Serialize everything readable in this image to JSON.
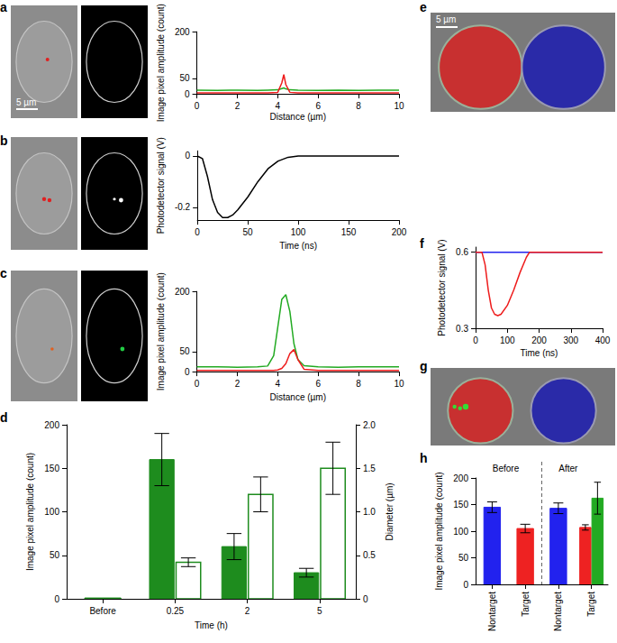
{
  "images": [
    {
      "panel": "a",
      "scale_bar": "5 µm"
    },
    {
      "panel": "b"
    },
    {
      "panel": "c"
    },
    {
      "panel": "e",
      "scale_bar": "5 µm"
    },
    {
      "panel": "g"
    }
  ],
  "chart_data": [
    {
      "type": "line",
      "x_label": "Distance (µm)",
      "y_label": "Image pixel amplitude (count)",
      "x": [
        0,
        1,
        2,
        3,
        3.5,
        4,
        4.2,
        4.3,
        4.4,
        4.6,
        5,
        6,
        7,
        8,
        9,
        10
      ],
      "series": [
        {
          "color": "#22aa22",
          "values": [
            12,
            11,
            12,
            11,
            12,
            13,
            17,
            19,
            16,
            13,
            12,
            11,
            12,
            11,
            12,
            12
          ]
        },
        {
          "color": "#ee1c1c",
          "values": [
            3,
            3,
            3,
            3,
            3,
            5,
            35,
            62,
            30,
            5,
            3,
            3,
            3,
            3,
            3,
            3
          ]
        }
      ],
      "xlim": [
        0,
        10
      ],
      "xticks": [
        0,
        2,
        4,
        6,
        8,
        10
      ],
      "ylim": [
        0,
        200
      ],
      "yticks": [
        0,
        50,
        200
      ]
    },
    {
      "type": "line",
      "x_label": "Time (ns)",
      "y_label": "Photodetector signal (V)",
      "x": [
        0,
        5,
        10,
        15,
        20,
        25,
        30,
        35,
        40,
        50,
        60,
        70,
        80,
        90,
        100,
        120,
        150,
        200
      ],
      "series": [
        {
          "color": "#000000",
          "values": [
            0,
            -0.01,
            -0.08,
            -0.17,
            -0.22,
            -0.24,
            -0.24,
            -0.23,
            -0.21,
            -0.16,
            -0.1,
            -0.05,
            -0.02,
            -0.005,
            0,
            0,
            0,
            0
          ]
        }
      ],
      "xlim": [
        0,
        200
      ],
      "xticks": [
        0,
        50,
        100,
        150,
        200
      ],
      "ylim": [
        -0.25,
        0.02
      ],
      "yticks": [
        -0.2,
        0
      ]
    },
    {
      "type": "line",
      "x_label": "Distance (µm)",
      "y_label": "Image pixel amplitude (count)",
      "x": [
        0,
        1,
        2,
        3,
        3.5,
        3.8,
        4,
        4.2,
        4.4,
        4.6,
        4.8,
        5,
        5.3,
        6,
        7,
        8,
        9,
        10
      ],
      "series": [
        {
          "color": "#22aa22",
          "values": [
            12,
            12,
            11,
            12,
            14,
            40,
            110,
            180,
            192,
            150,
            70,
            30,
            15,
            12,
            11,
            12,
            12,
            12
          ]
        },
        {
          "color": "#ee1c1c",
          "values": [
            3,
            3,
            3,
            3,
            3,
            3,
            4,
            8,
            20,
            45,
            55,
            30,
            6,
            3,
            3,
            3,
            3,
            3
          ]
        }
      ],
      "xlim": [
        0,
        10
      ],
      "xticks": [
        0,
        2,
        4,
        6,
        8,
        10
      ],
      "ylim": [
        0,
        200
      ],
      "yticks": [
        0,
        50,
        200
      ]
    },
    {
      "panel": "d",
      "type": "bar",
      "x_label": "Time (h)",
      "y_label": "Image pixel amplitude (count)",
      "y2_label": "Diameter (µm)",
      "categories": [
        "Before",
        "0.25",
        "2",
        "5"
      ],
      "series": [
        {
          "color": "#1e8c1e",
          "values": [
            1,
            160,
            60,
            30
          ],
          "errors": [
            null,
            30,
            15,
            5
          ]
        },
        {
          "color": "#1e8c1e",
          "marker": "hollow",
          "axis": "y2",
          "values": [
            null,
            0.42,
            1.2,
            1.5
          ],
          "errors": [
            null,
            0.05,
            0.2,
            0.3
          ]
        }
      ],
      "ylim": [
        0,
        200
      ],
      "yticks": [
        0,
        50,
        100,
        150,
        200
      ],
      "y2lim": [
        0,
        2
      ],
      "y2ticks": [
        0,
        0.5,
        {
          "value": 1,
          "label": "1.0"
        },
        1.5,
        {
          "value": 2,
          "label": "2.0"
        }
      ]
    },
    {
      "panel": "f",
      "type": "line",
      "x_label": "Time (ns)",
      "y_label": "Photodetector signal (V)",
      "x": [
        0,
        20,
        30,
        40,
        50,
        60,
        70,
        80,
        100,
        120,
        140,
        160,
        170,
        180,
        250,
        300,
        400
      ],
      "series": [
        {
          "color": "#2222ee",
          "values": [
            0.6,
            0.6,
            0.6,
            0.6,
            0.6,
            0.6,
            0.6,
            0.6,
            0.6,
            0.6,
            0.6,
            0.6,
            0.6,
            0.6,
            0.6,
            0.6,
            0.6
          ]
        },
        {
          "color": "#ee1c1c",
          "values": [
            0.6,
            0.6,
            0.55,
            0.45,
            0.38,
            0.355,
            0.35,
            0.355,
            0.39,
            0.45,
            0.52,
            0.58,
            0.6,
            0.6,
            0.6,
            0.6,
            0.6
          ]
        }
      ],
      "xlim": [
        0,
        400
      ],
      "xticks": [
        0,
        100,
        200,
        300,
        400
      ],
      "ylim": [
        0.3,
        0.62
      ],
      "yticks": [
        0.3,
        0.6
      ]
    },
    {
      "panel": "h",
      "type": "bar",
      "y_label": "Image pixel amplitude (count)",
      "groups": [
        "Before",
        "After"
      ],
      "categories": [
        "Nontarget",
        "Target",
        "Nontarget",
        "Target"
      ],
      "series": [
        {
          "color": "#2222ee",
          "values": [
            145,
            null,
            143,
            null
          ],
          "errors": [
            10,
            null,
            10,
            null
          ]
        },
        {
          "color": "#ee2222",
          "values": [
            null,
            105,
            null,
            107
          ],
          "errors": [
            null,
            8,
            null,
            5
          ]
        },
        {
          "color": "#22aa22",
          "values": [
            null,
            null,
            null,
            162
          ],
          "errors": [
            null,
            null,
            null,
            30
          ]
        }
      ],
      "ylim": [
        0,
        200
      ],
      "yticks": [
        0,
        50,
        100,
        150,
        200
      ]
    }
  ]
}
